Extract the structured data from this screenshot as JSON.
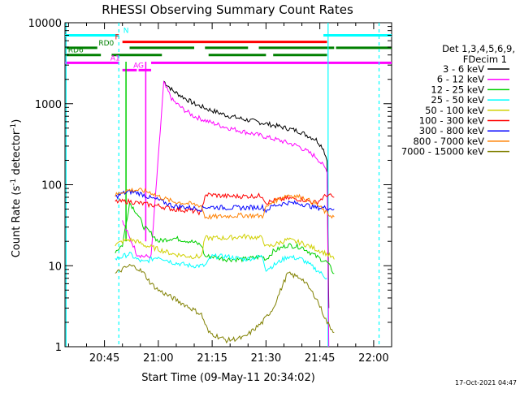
{
  "chart_data": {
    "type": "line",
    "title": "RHESSI Observing Summary Count Rates",
    "xlabel": "Start Time (09-May-11 20:34:02)",
    "ylabel_main": "Count Rate (s",
    "ylabel_sup1": "-1",
    "ylabel_mid": " detector",
    "ylabel_sup2": "-1",
    "ylabel_end": ")",
    "y_scale": "log",
    "ylim": [
      1,
      10000
    ],
    "xlim_minutes": [
      0,
      91
    ],
    "x_ticks": [
      {
        "t": 11,
        "label": "20:45"
      },
      {
        "t": 26,
        "label": "21:00"
      },
      {
        "t": 41,
        "label": "21:15"
      },
      {
        "t": 56,
        "label": "21:30"
      },
      {
        "t": 71,
        "label": "21:45"
      },
      {
        "t": 86,
        "label": "22:00"
      }
    ],
    "y_ticks": [
      {
        "v": 1,
        "label": "1"
      },
      {
        "v": 10,
        "label": "10"
      },
      {
        "v": 100,
        "label": "100"
      },
      {
        "v": 1000,
        "label": "1000"
      },
      {
        "v": 10000,
        "label": "10000"
      }
    ],
    "legend": {
      "title_line1": "Det 1,3,4,5,6,9,",
      "title_line2": "FDecim 1",
      "placement": "right"
    },
    "series": [
      {
        "name": "3 - 6 keV",
        "color": "#000000",
        "points": [
          [
            27.5,
            1900
          ],
          [
            30,
            1450
          ],
          [
            33,
            1200
          ],
          [
            36,
            1000
          ],
          [
            40,
            850
          ],
          [
            45,
            720
          ],
          [
            50,
            640
          ],
          [
            55,
            580
          ],
          [
            60,
            520
          ],
          [
            65,
            460
          ],
          [
            70,
            360
          ],
          [
            72,
            280
          ],
          [
            73,
            200
          ],
          [
            73.5,
            3
          ]
        ]
      },
      {
        "name": "6 - 12 keV",
        "color": "#ff00ff",
        "points": [
          [
            16,
            35
          ],
          [
            17,
            28
          ],
          [
            18,
            22
          ],
          [
            19,
            18
          ],
          [
            20,
            14
          ],
          [
            22,
            13
          ],
          [
            24,
            13
          ],
          [
            27.5,
            1800
          ],
          [
            30,
            1100
          ],
          [
            33,
            850
          ],
          [
            36,
            700
          ],
          [
            40,
            600
          ],
          [
            45,
            510
          ],
          [
            50,
            450
          ],
          [
            55,
            400
          ],
          [
            60,
            350
          ],
          [
            65,
            300
          ],
          [
            70,
            220
          ],
          [
            72,
            170
          ],
          [
            73,
            150
          ],
          [
            73.5,
            1
          ]
        ]
      },
      {
        "name": "12 - 25 keV",
        "color": "#00d000",
        "points": [
          [
            14,
            15
          ],
          [
            16,
            18
          ],
          [
            18,
            60
          ],
          [
            20,
            45
          ],
          [
            22,
            30
          ],
          [
            24,
            25
          ],
          [
            26,
            20
          ],
          [
            30,
            22
          ],
          [
            35,
            20
          ],
          [
            38,
            18
          ],
          [
            39,
            13
          ],
          [
            41,
            13
          ],
          [
            45,
            12
          ],
          [
            50,
            12
          ],
          [
            55,
            13
          ],
          [
            56,
            12
          ],
          [
            58,
            15
          ],
          [
            62,
            18
          ],
          [
            66,
            17
          ],
          [
            70,
            13
          ],
          [
            73,
            11
          ],
          [
            75,
            8
          ]
        ]
      },
      {
        "name": "25 - 50 keV",
        "color": "#00ffff",
        "points": [
          [
            14,
            12
          ],
          [
            16,
            13
          ],
          [
            18,
            14
          ],
          [
            20,
            12
          ],
          [
            22,
            11
          ],
          [
            24,
            12
          ],
          [
            26,
            13
          ],
          [
            30,
            11
          ],
          [
            35,
            10
          ],
          [
            39,
            10
          ],
          [
            41,
            13
          ],
          [
            45,
            13
          ],
          [
            50,
            12
          ],
          [
            55,
            13
          ],
          [
            56,
            9
          ],
          [
            58,
            10
          ],
          [
            62,
            13
          ],
          [
            66,
            12
          ],
          [
            70,
            9
          ],
          [
            73,
            7
          ]
        ]
      },
      {
        "name": "50 - 100 keV",
        "color": "#d0d000",
        "points": [
          [
            14,
            18
          ],
          [
            16,
            20
          ],
          [
            18,
            21
          ],
          [
            20,
            20
          ],
          [
            22,
            18
          ],
          [
            24,
            17
          ],
          [
            26,
            16
          ],
          [
            30,
            14
          ],
          [
            35,
            13
          ],
          [
            38,
            13
          ],
          [
            39,
            22
          ],
          [
            41,
            22
          ],
          [
            45,
            22
          ],
          [
            50,
            23
          ],
          [
            55,
            22
          ],
          [
            56,
            17
          ],
          [
            58,
            18
          ],
          [
            62,
            21
          ],
          [
            66,
            19
          ],
          [
            70,
            16
          ],
          [
            73,
            14
          ],
          [
            75,
            12
          ]
        ]
      },
      {
        "name": "100 - 300 keV",
        "color": "#ff0000",
        "points": [
          [
            14,
            62
          ],
          [
            16,
            62
          ],
          [
            18,
            62
          ],
          [
            20,
            60
          ],
          [
            22,
            58
          ],
          [
            24,
            56
          ],
          [
            26,
            55
          ],
          [
            30,
            50
          ],
          [
            35,
            48
          ],
          [
            38,
            45
          ],
          [
            39,
            75
          ],
          [
            41,
            75
          ],
          [
            45,
            72
          ],
          [
            50,
            72
          ],
          [
            55,
            73
          ],
          [
            56,
            60
          ],
          [
            58,
            63
          ],
          [
            62,
            68
          ],
          [
            66,
            66
          ],
          [
            70,
            60
          ],
          [
            73,
            75
          ],
          [
            75,
            70
          ]
        ]
      },
      {
        "name": "300 - 800 keV",
        "color": "#0000ff",
        "points": [
          [
            14,
            70
          ],
          [
            16,
            78
          ],
          [
            18,
            82
          ],
          [
            20,
            80
          ],
          [
            22,
            75
          ],
          [
            24,
            68
          ],
          [
            26,
            65
          ],
          [
            30,
            55
          ],
          [
            35,
            52
          ],
          [
            38,
            50
          ],
          [
            39,
            53
          ],
          [
            41,
            53
          ],
          [
            45,
            52
          ],
          [
            50,
            52
          ],
          [
            55,
            53
          ],
          [
            56,
            48
          ],
          [
            58,
            55
          ],
          [
            62,
            60
          ],
          [
            66,
            58
          ],
          [
            70,
            52
          ],
          [
            73,
            52
          ],
          [
            75,
            50
          ]
        ]
      },
      {
        "name": "800 - 7000 keV",
        "color": "#ff8000",
        "points": [
          [
            14,
            74
          ],
          [
            16,
            82
          ],
          [
            18,
            86
          ],
          [
            20,
            86
          ],
          [
            22,
            84
          ],
          [
            24,
            80
          ],
          [
            26,
            72
          ],
          [
            30,
            62
          ],
          [
            35,
            58
          ],
          [
            38,
            55
          ],
          [
            39,
            40
          ],
          [
            41,
            40
          ],
          [
            45,
            41
          ],
          [
            50,
            42
          ],
          [
            55,
            41
          ],
          [
            56,
            52
          ],
          [
            58,
            62
          ],
          [
            62,
            75
          ],
          [
            66,
            70
          ],
          [
            70,
            58
          ],
          [
            73,
            44
          ],
          [
            75,
            40
          ]
        ]
      },
      {
        "name": "7000 - 15000 keV",
        "color": "#808000",
        "points": [
          [
            14,
            8
          ],
          [
            16,
            9
          ],
          [
            18,
            10
          ],
          [
            20,
            9.5
          ],
          [
            22,
            8
          ],
          [
            24,
            6
          ],
          [
            26,
            5
          ],
          [
            30,
            4
          ],
          [
            35,
            3
          ],
          [
            38,
            2.5
          ],
          [
            40,
            1.5
          ],
          [
            45,
            1.2
          ],
          [
            50,
            1.3
          ],
          [
            55,
            2
          ],
          [
            58,
            3
          ],
          [
            62,
            8
          ],
          [
            66,
            7
          ],
          [
            70,
            4
          ],
          [
            73,
            2
          ],
          [
            75,
            1.5
          ]
        ]
      }
    ],
    "state_bars": [
      {
        "label": "N",
        "color": "#00ffff",
        "segments": [
          [
            0,
            15
          ],
          [
            72,
            91
          ]
        ],
        "y": 7000,
        "label_t": 17
      },
      {
        "label": "F",
        "color": "#ff0000",
        "segments": [
          [
            16,
            73
          ]
        ],
        "y": 5800,
        "label_t": 14.5
      },
      {
        "label": "RD0",
        "color": "#008000",
        "segments": [
          [
            0,
            9
          ],
          [
            18,
            36
          ],
          [
            39,
            51
          ],
          [
            54,
            75
          ],
          [
            75.5,
            91
          ]
        ],
        "y": 4900,
        "label_t": 11.5
      },
      {
        "label": "RD6",
        "color": "#008000",
        "segments": [
          [
            0,
            10
          ],
          [
            13,
            27
          ],
          [
            40,
            56
          ],
          [
            58,
            73
          ]
        ],
        "y": 4000,
        "label_t": 3
      },
      {
        "label": "AG",
        "color": "#ff00ff",
        "segments": [
          [
            16,
            20
          ],
          [
            20.5,
            24
          ]
        ],
        "y": 2600,
        "label_t": 20.5
      },
      {
        "label": "A1",
        "color": "#ff00ff",
        "segments": [
          [
            0,
            15
          ],
          [
            24,
            91
          ]
        ],
        "y": 3200,
        "label_t": 14
      }
    ],
    "spikes": [
      {
        "color": "#00d000",
        "t": 17,
        "from": 20,
        "to": 3300
      },
      {
        "color": "#ff00ff",
        "t": 22.5,
        "from": 20,
        "to": 3300
      }
    ],
    "vlines": [
      {
        "t": 15,
        "color": "#00ffff",
        "style": "dashed"
      },
      {
        "t": 73.3,
        "color": "#00ffff",
        "style": "solid"
      },
      {
        "t": 87.5,
        "color": "#00ffff",
        "style": "dashed"
      },
      {
        "t": 0.3,
        "color": "#00ffff",
        "style": "solid"
      }
    ],
    "timestamp": "17-Oct-2021 04:47"
  }
}
